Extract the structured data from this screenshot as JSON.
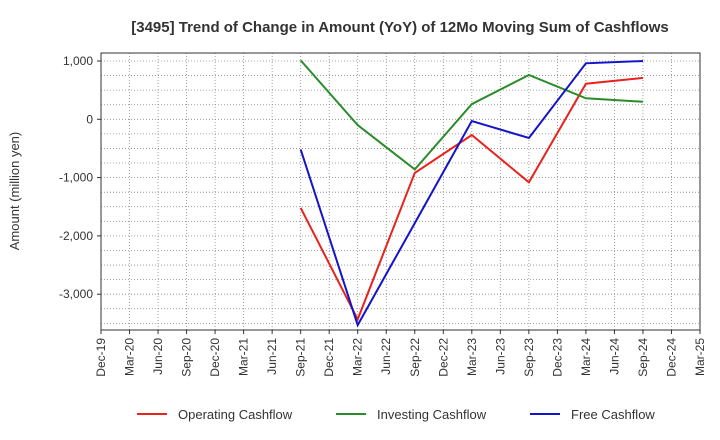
{
  "chart_data": {
    "type": "line",
    "title": "[3495]  Trend of Change in Amount (YoY) of 12Mo Moving Sum of Cashflows",
    "xlabel": "",
    "ylabel": "Amount (million yen)",
    "ylim": [
      -3600,
      1100
    ],
    "yticks": [
      1000,
      0,
      -1000,
      -2000,
      -3000
    ],
    "ytick_labels": [
      "1,000",
      "0",
      "-1,000",
      "-2,000",
      "-3,000"
    ],
    "categories": [
      "Dec-19",
      "Mar-20",
      "Jun-20",
      "Sep-20",
      "Dec-20",
      "Mar-21",
      "Jun-21",
      "Sep-21",
      "Dec-21",
      "Mar-22",
      "Jun-22",
      "Sep-22",
      "Dec-22",
      "Mar-23",
      "Jun-23",
      "Sep-23",
      "Dec-23",
      "Mar-24",
      "Jun-24",
      "Sep-24",
      "Dec-24",
      "Mar-25"
    ],
    "series": [
      {
        "name": "Operating Cashflow",
        "color": "#e8231d",
        "points": [
          [
            "Sep-21",
            -1520
          ],
          [
            "Mar-22",
            -3430
          ],
          [
            "Sep-22",
            -920
          ],
          [
            "Mar-23",
            -270
          ],
          [
            "Sep-23",
            -1080
          ],
          [
            "Mar-24",
            610
          ],
          [
            "Sep-24",
            710
          ]
        ]
      },
      {
        "name": "Investing Cashflow",
        "color": "#2a8c2a",
        "points": [
          [
            "Sep-21",
            1010
          ],
          [
            "Mar-22",
            -100
          ],
          [
            "Sep-22",
            -860
          ],
          [
            "Mar-23",
            260
          ],
          [
            "Sep-23",
            760
          ],
          [
            "Mar-24",
            360
          ],
          [
            "Sep-24",
            300
          ]
        ]
      },
      {
        "name": "Free Cashflow",
        "color": "#1414c8",
        "points": [
          [
            "Sep-21",
            -520
          ],
          [
            "Mar-22",
            -3530
          ],
          [
            "Sep-22",
            -1780
          ],
          [
            "Mar-23",
            -30
          ],
          [
            "Sep-23",
            -320
          ],
          [
            "Mar-24",
            960
          ],
          [
            "Sep-24",
            1000
          ]
        ]
      }
    ],
    "grid": true,
    "legend_position": "bottom"
  }
}
